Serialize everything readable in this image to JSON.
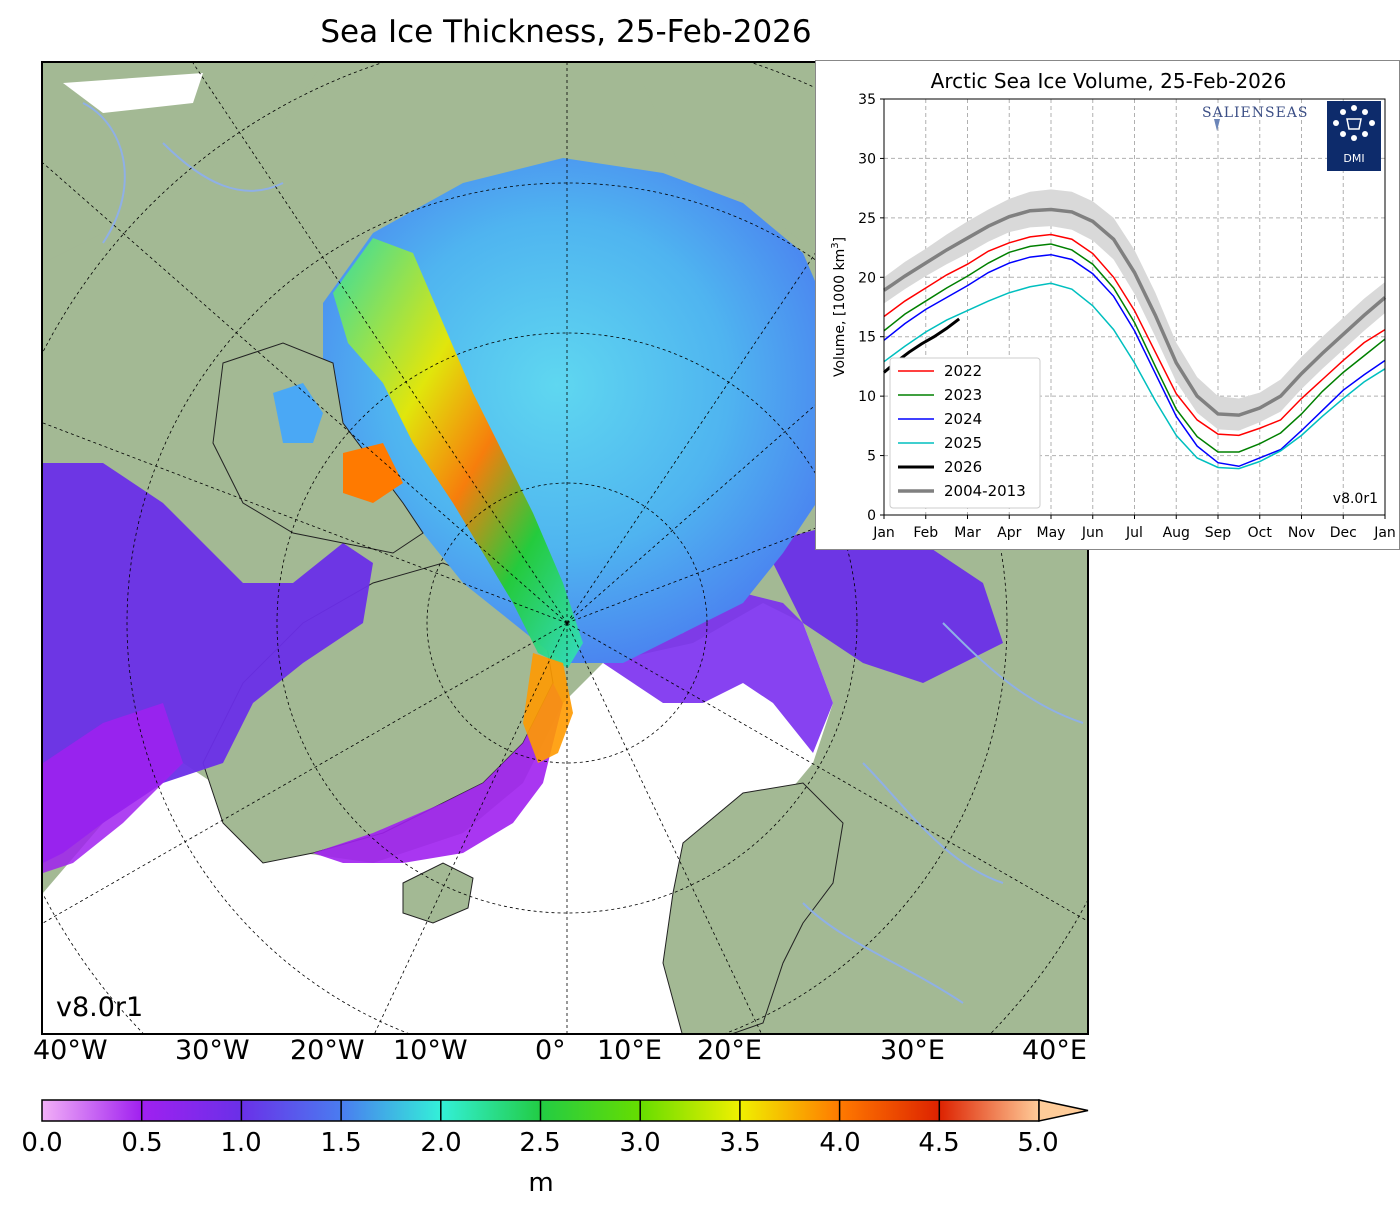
{
  "map": {
    "title": "Sea Ice Thickness, 25-Feb-2026",
    "version": "v8.0r1",
    "lon_labels": [
      "40°W",
      "30°W",
      "20°W",
      "10°W",
      "0°",
      "10°E",
      "20°E",
      "30°E",
      "40°E"
    ],
    "colors": {
      "land": "#a3b994",
      "open_water": "#ffffff",
      "rivers": "#8fb0e6",
      "graticule": "#000000"
    }
  },
  "colorbar": {
    "ticks": [
      "0.0",
      "0.5",
      "1.0",
      "1.5",
      "2.0",
      "2.5",
      "3.0",
      "3.5",
      "4.0",
      "4.5",
      "5.0"
    ],
    "unit": "m",
    "colors": [
      "#f2b0f7",
      "#a020f0",
      "#7030e8",
      "#4f66f0",
      "#4aa8f5",
      "#33f0d8",
      "#22dd88",
      "#22cc11",
      "#88dd00",
      "#f0f000",
      "#ffb000",
      "#ff6a00",
      "#dd2200",
      "#cc1a33",
      "#ffcc99"
    ]
  },
  "logos": {
    "salienseas": "SALIENSEAS",
    "dmi": "DMI"
  },
  "chart_data": {
    "type": "line",
    "title": "Arctic Sea Ice Volume, 25-Feb-2026",
    "ylabel": "Volume, [1000 km",
    "ylabel_sup": "3",
    "ylabel_end": "]",
    "ylim": [
      0,
      35
    ],
    "yticks": [
      0,
      5,
      10,
      15,
      20,
      25,
      30,
      35
    ],
    "xticks": [
      "Jan",
      "Feb",
      "Mar",
      "Apr",
      "May",
      "Jun",
      "Jul",
      "Aug",
      "Sep",
      "Oct",
      "Nov",
      "Dec",
      "Jan"
    ],
    "xlim": [
      0,
      12
    ],
    "grid": true,
    "legend_position": "lower-left",
    "version": "v8.0r1",
    "series": [
      {
        "name": "2022",
        "color": "#ff0000",
        "x": [
          0,
          0.5,
          1,
          1.5,
          2,
          2.5,
          3,
          3.5,
          4,
          4.5,
          5,
          5.5,
          6,
          6.5,
          7,
          7.5,
          8,
          8.5,
          9,
          9.5,
          10,
          10.5,
          11,
          11.5,
          12
        ],
        "y": [
          16.7,
          18.0,
          19.1,
          20.2,
          21.1,
          22.2,
          22.9,
          23.4,
          23.6,
          23.2,
          22.0,
          20.0,
          17.2,
          13.7,
          10.2,
          8.0,
          6.8,
          6.7,
          7.3,
          8.0,
          9.8,
          11.4,
          13.0,
          14.5,
          15.6
        ]
      },
      {
        "name": "2023",
        "color": "#008000",
        "x": [
          0,
          0.5,
          1,
          1.5,
          2,
          2.5,
          3,
          3.5,
          4,
          4.5,
          5,
          5.5,
          6,
          6.5,
          7,
          7.5,
          8,
          8.5,
          9,
          9.5,
          10,
          10.5,
          11,
          11.5,
          12
        ],
        "y": [
          15.5,
          16.9,
          18.0,
          19.1,
          20.1,
          21.2,
          22.1,
          22.6,
          22.8,
          22.3,
          21.1,
          19.1,
          16.2,
          12.5,
          8.9,
          6.6,
          5.3,
          5.3,
          6.0,
          6.9,
          8.5,
          10.4,
          12.0,
          13.4,
          14.8
        ]
      },
      {
        "name": "2024",
        "color": "#0000ff",
        "x": [
          0,
          0.5,
          1,
          1.5,
          2,
          2.5,
          3,
          3.5,
          4,
          4.5,
          5,
          5.5,
          6,
          6.5,
          7,
          7.5,
          8,
          8.5,
          9,
          9.5,
          10,
          10.5,
          11,
          11.5,
          12
        ],
        "y": [
          14.7,
          16.1,
          17.3,
          18.3,
          19.3,
          20.4,
          21.2,
          21.7,
          21.9,
          21.5,
          20.3,
          18.4,
          15.5,
          11.9,
          8.3,
          5.8,
          4.4,
          4.1,
          4.8,
          5.5,
          7.1,
          8.8,
          10.5,
          11.8,
          13.0
        ]
      },
      {
        "name": "2025",
        "color": "#00bfbf",
        "x": [
          0,
          0.5,
          1,
          1.5,
          2,
          2.5,
          3,
          3.5,
          4,
          4.5,
          5,
          5.5,
          6,
          6.5,
          7,
          7.5,
          8,
          8.5,
          9,
          9.5,
          10,
          10.5,
          11,
          11.5,
          12
        ],
        "y": [
          12.9,
          14.2,
          15.4,
          16.4,
          17.2,
          18.0,
          18.7,
          19.2,
          19.5,
          19.0,
          17.6,
          15.6,
          12.8,
          9.6,
          6.7,
          4.8,
          4.0,
          3.9,
          4.5,
          5.4,
          6.7,
          8.3,
          9.8,
          11.2,
          12.3
        ]
      },
      {
        "name": "2026",
        "color": "#000000",
        "x": [
          0,
          0.3,
          0.6,
          0.9,
          1.2,
          1.5,
          1.8
        ],
        "y": [
          12.0,
          12.9,
          13.7,
          14.4,
          15.0,
          15.7,
          16.5
        ]
      },
      {
        "name": "2004-2013",
        "color": "#808080",
        "band_color": "#d9d9d9",
        "x": [
          0,
          0.5,
          1,
          1.5,
          2,
          2.5,
          3,
          3.5,
          4,
          4.5,
          5,
          5.5,
          6,
          6.5,
          7,
          7.5,
          8,
          8.5,
          9,
          9.5,
          10,
          10.5,
          11,
          11.5,
          12
        ],
        "y": [
          18.9,
          20.1,
          21.2,
          22.3,
          23.3,
          24.3,
          25.1,
          25.6,
          25.7,
          25.5,
          24.7,
          23.2,
          20.4,
          16.8,
          12.8,
          10.0,
          8.5,
          8.4,
          9.0,
          10.0,
          11.9,
          13.6,
          15.2,
          16.8,
          18.3
        ],
        "band_lower": [
          17.8,
          19.0,
          20.1,
          21.1,
          22.0,
          23.0,
          23.8,
          24.2,
          24.3,
          24.0,
          23.1,
          21.5,
          18.6,
          15.0,
          11.2,
          8.6,
          7.2,
          7.1,
          7.8,
          8.7,
          10.6,
          12.3,
          13.9,
          15.5,
          17.0
        ],
        "band_upper": [
          20.0,
          21.3,
          22.4,
          23.6,
          24.7,
          25.7,
          26.6,
          27.2,
          27.4,
          27.2,
          26.4,
          25.0,
          22.3,
          18.7,
          14.5,
          11.6,
          10.0,
          9.8,
          10.3,
          11.4,
          13.3,
          15.0,
          16.6,
          18.2,
          19.6
        ]
      }
    ]
  }
}
